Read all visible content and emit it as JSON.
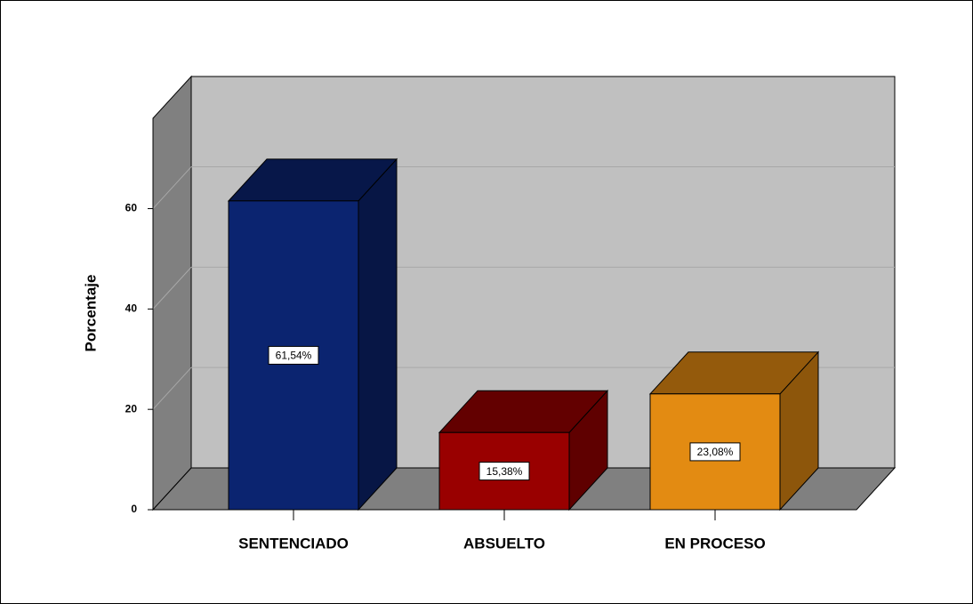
{
  "chart_data": {
    "type": "bar3d",
    "y_label": "Porcentaje",
    "categories": [
      "SENTENCIADO",
      "ABSUELTO",
      "EN PROCESO"
    ],
    "values": [
      61.54,
      15.38,
      23.08
    ],
    "value_labels": [
      "61,54%",
      "15,38%",
      "23,08%"
    ],
    "colors": [
      "#0b2470",
      "#990000",
      "#e38b12"
    ],
    "ylim": [
      0,
      78
    ],
    "yticks": [
      0,
      20,
      40,
      60
    ],
    "grid": true
  }
}
